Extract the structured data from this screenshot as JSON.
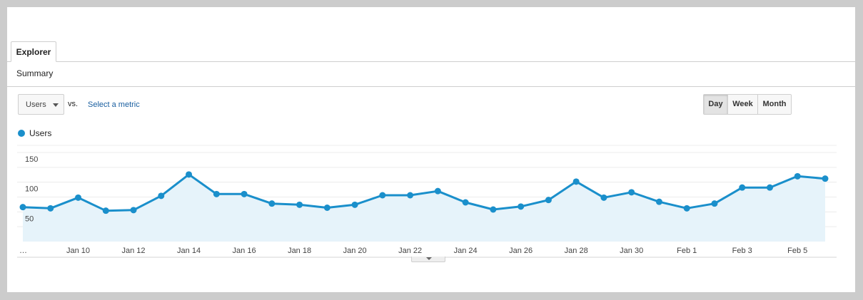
{
  "tabs": {
    "explorer": "Explorer"
  },
  "sections": {
    "summary": "Summary"
  },
  "controls": {
    "primary_metric": "Users",
    "vs_label": "vs.",
    "select_metric_link": "Select a metric",
    "granularity": [
      {
        "label": "Day",
        "active": true
      },
      {
        "label": "Week",
        "active": false
      },
      {
        "label": "Month",
        "active": false
      }
    ]
  },
  "colors": {
    "series": "#1a8fcb",
    "area": "#e6f3fa",
    "grid": "#ececec",
    "link": "#1a5fa0"
  },
  "chart_data": {
    "type": "line",
    "legend": [
      "Users"
    ],
    "y_ticks": [
      50,
      100,
      150
    ],
    "ylim": [
      0,
      150
    ],
    "grid": true,
    "x": [
      "Jan 8",
      "Jan 9",
      "Jan 10",
      "Jan 11",
      "Jan 12",
      "Jan 13",
      "Jan 14",
      "Jan 15",
      "Jan 16",
      "Jan 17",
      "Jan 18",
      "Jan 19",
      "Jan 20",
      "Jan 21",
      "Jan 22",
      "Jan 23",
      "Jan 24",
      "Jan 25",
      "Jan 26",
      "Jan 27",
      "Jan 28",
      "Jan 29",
      "Jan 30",
      "Jan 31",
      "Feb 1",
      "Feb 2",
      "Feb 3",
      "Feb 4",
      "Feb 5",
      "Feb 6"
    ],
    "tick_labels": [
      "…",
      "Jan 10",
      "Jan 12",
      "Jan 14",
      "Jan 16",
      "Jan 18",
      "Jan 20",
      "Jan 22",
      "Jan 24",
      "Jan 26",
      "Jan 28",
      "Jan 30",
      "Feb 1",
      "Feb 3",
      "Feb 5"
    ],
    "series": [
      {
        "name": "Users",
        "values": [
          58,
          56,
          74,
          52,
          53,
          77,
          113,
          80,
          80,
          64,
          62,
          57,
          62,
          78,
          78,
          85,
          66,
          54,
          59,
          70,
          101,
          74,
          83,
          67,
          56,
          64,
          91,
          91,
          110,
          106
        ]
      }
    ]
  }
}
